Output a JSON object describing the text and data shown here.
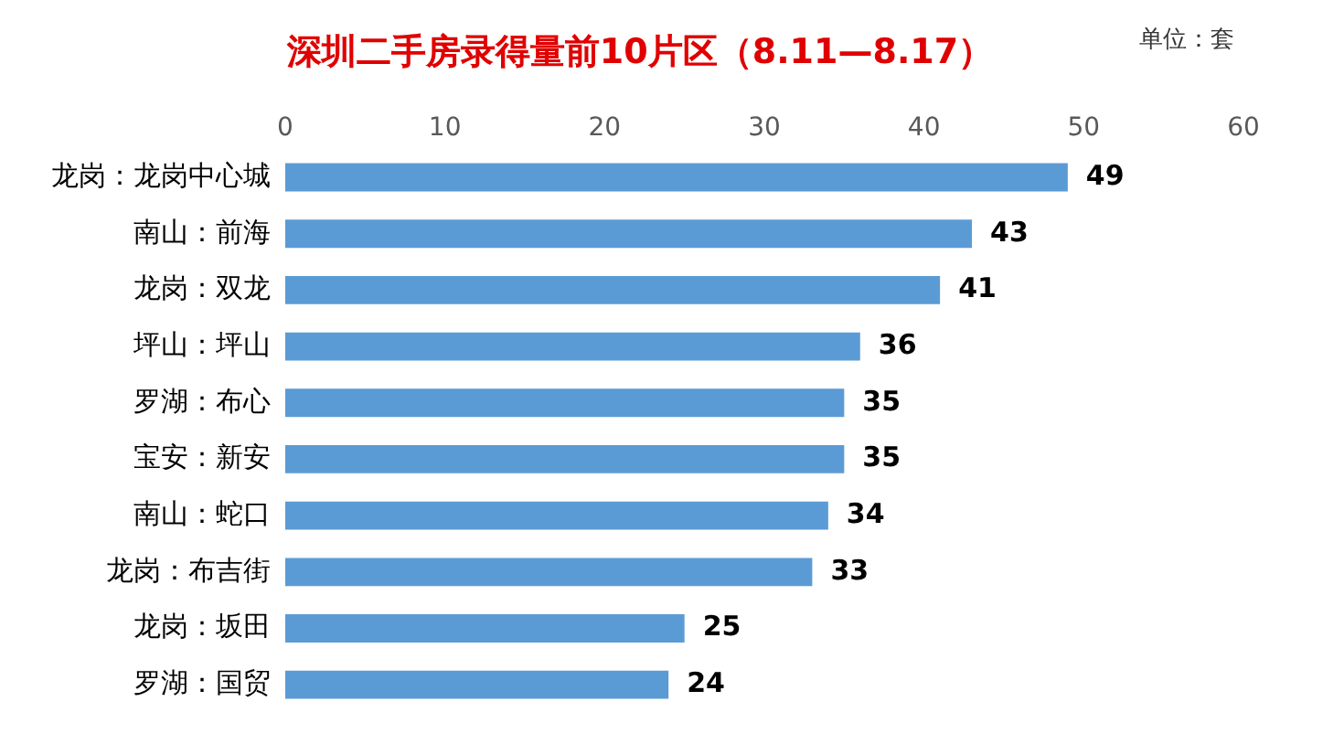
{
  "chart_data": {
    "type": "bar",
    "orientation": "horizontal",
    "title": "深圳二手房录得量前10片区（8.11—8.17）",
    "annotations": [
      "单位：套"
    ],
    "categories": [
      "龙岗：龙岗中心城",
      "南山：前海",
      "龙岗：双龙",
      "坪山：坪山",
      "罗湖：布心",
      "宝安：新安",
      "南山：蛇口",
      "龙岗：布吉街",
      "龙岗：坂田",
      "罗湖：国贸"
    ],
    "values": [
      49,
      43,
      41,
      36,
      35,
      35,
      34,
      33,
      25,
      24
    ],
    "color": "#5b9bd5",
    "xlim": [
      0,
      60
    ],
    "xticks": [
      0,
      10,
      20,
      30,
      40,
      50,
      60
    ],
    "grid": false,
    "legend": false,
    "data_labels": true
  }
}
